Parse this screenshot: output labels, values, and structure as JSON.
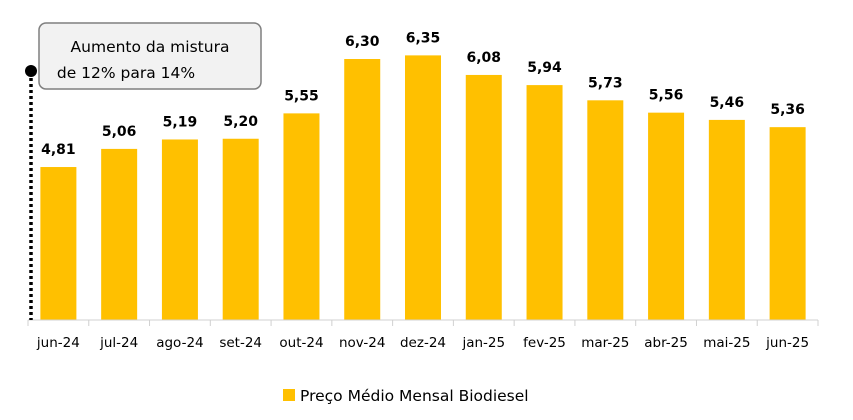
{
  "chart_data": {
    "type": "bar",
    "categories": [
      "jun-24",
      "jul-24",
      "ago-24",
      "set-24",
      "out-24",
      "nov-24",
      "dez-24",
      "jan-25",
      "fev-25",
      "mar-25",
      "abr-25",
      "mai-25",
      "jun-25"
    ],
    "series": [
      {
        "name": "Preço Médio Mensal Biodiesel",
        "values": [
          4.81,
          5.06,
          5.19,
          5.2,
          5.55,
          6.3,
          6.35,
          6.08,
          5.94,
          5.73,
          5.56,
          5.46,
          5.36
        ],
        "labels": [
          "4,81",
          "5,06",
          "5,19",
          "5,20",
          "5,55",
          "6,30",
          "6,35",
          "6,08",
          "5,94",
          "5,73",
          "5,56",
          "5,46",
          "5,36"
        ]
      }
    ],
    "ylim": [
      2.7,
      6.7
    ],
    "grid": false,
    "legend_position": "bottom",
    "bar_color": "#FFC000",
    "annotation": {
      "lines": [
        "Aumento da mistura",
        "de 12% para 14%"
      ],
      "category": "jun-24"
    }
  }
}
